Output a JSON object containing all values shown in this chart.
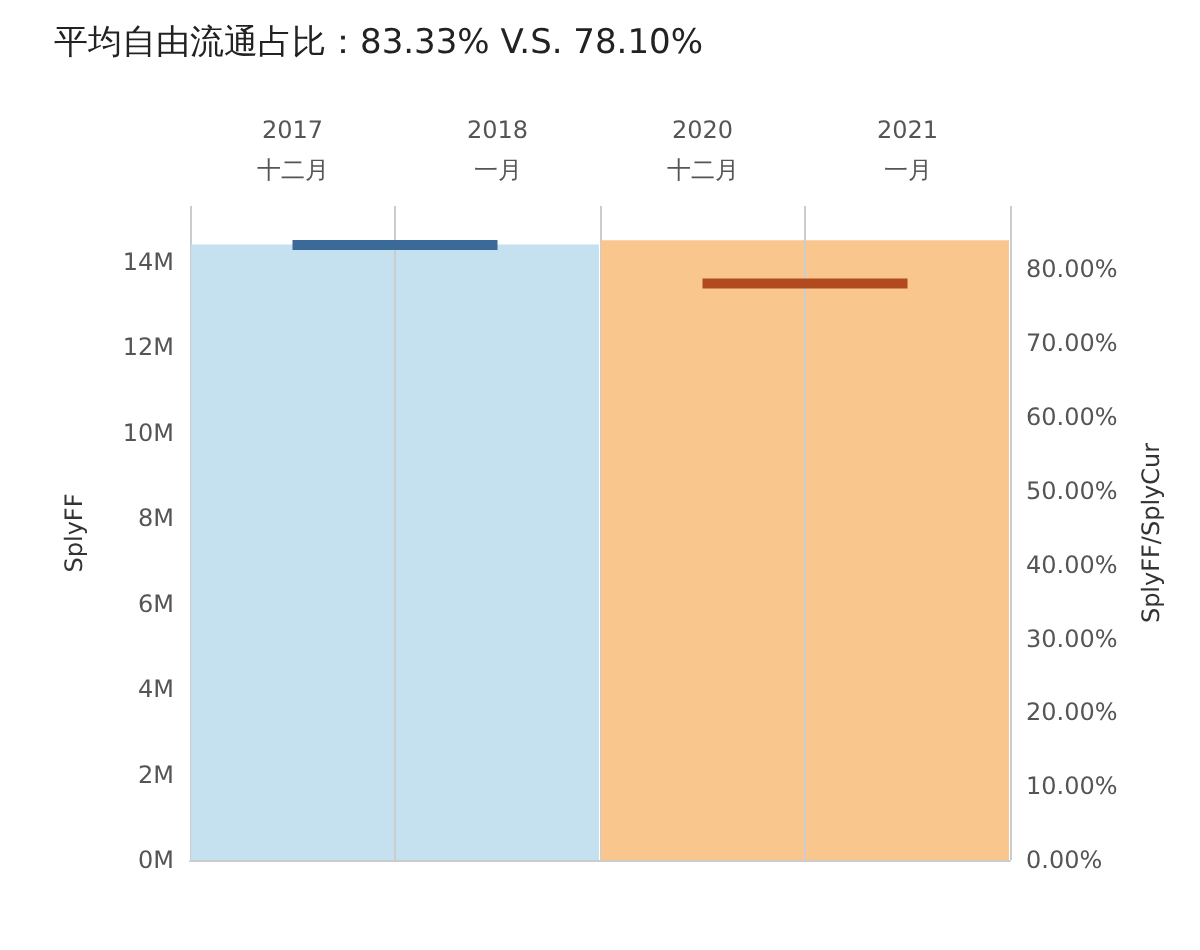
{
  "chart_data": {
    "type": "bar",
    "title": "平均自由流通占比：83.33% V.S. 78.10%",
    "ylabel": "SplyFF",
    "y2label": "SplyFF/SplyCur",
    "categories": [
      "2017\n十二月",
      "2018\n一月",
      "2020\n十二月",
      "2021\n一月"
    ],
    "series": [
      {
        "colors": [
          "#c5e0ef",
          "#c5e0ef",
          "#f9c68e",
          "#f9c68e"
        ],
        "values": [
          14.4,
          14.4,
          14.5,
          14.5
        ]
      },
      {
        "type": "line",
        "axis": "y2",
        "color": "#3b6a99",
        "values": [
          83.3,
          83.3,
          null,
          null
        ]
      },
      {
        "type": "line",
        "axis": "y2",
        "color": "#b24a1f",
        "values": [
          null,
          null,
          78.1,
          78.1
        ]
      }
    ],
    "ylim": [
      0,
      15.3
    ],
    "yticks": [
      {
        "value": 0,
        "label": "0M"
      },
      {
        "value": 2,
        "label": "2M"
      },
      {
        "value": 4,
        "label": "4M"
      },
      {
        "value": 6,
        "label": "6M"
      },
      {
        "value": 8,
        "label": "8M"
      },
      {
        "value": 10,
        "label": "10M"
      },
      {
        "value": 12,
        "label": "12M"
      },
      {
        "value": 14,
        "label": "14M"
      }
    ],
    "y2lim": [
      0,
      88.6
    ],
    "y2ticks": [
      {
        "value": 0,
        "label": "0.00%"
      },
      {
        "value": 10,
        "label": "10.00%"
      },
      {
        "value": 20,
        "label": "20.00%"
      },
      {
        "value": 30,
        "label": "30.00%"
      },
      {
        "value": 40,
        "label": "40.00%"
      },
      {
        "value": 50,
        "label": "50.00%"
      },
      {
        "value": 60,
        "label": "60.00%"
      },
      {
        "value": 70,
        "label": "70.00%"
      },
      {
        "value": 80,
        "label": "80.00%"
      }
    ],
    "grid": "x",
    "marker": "none",
    "line_style": "solid"
  }
}
